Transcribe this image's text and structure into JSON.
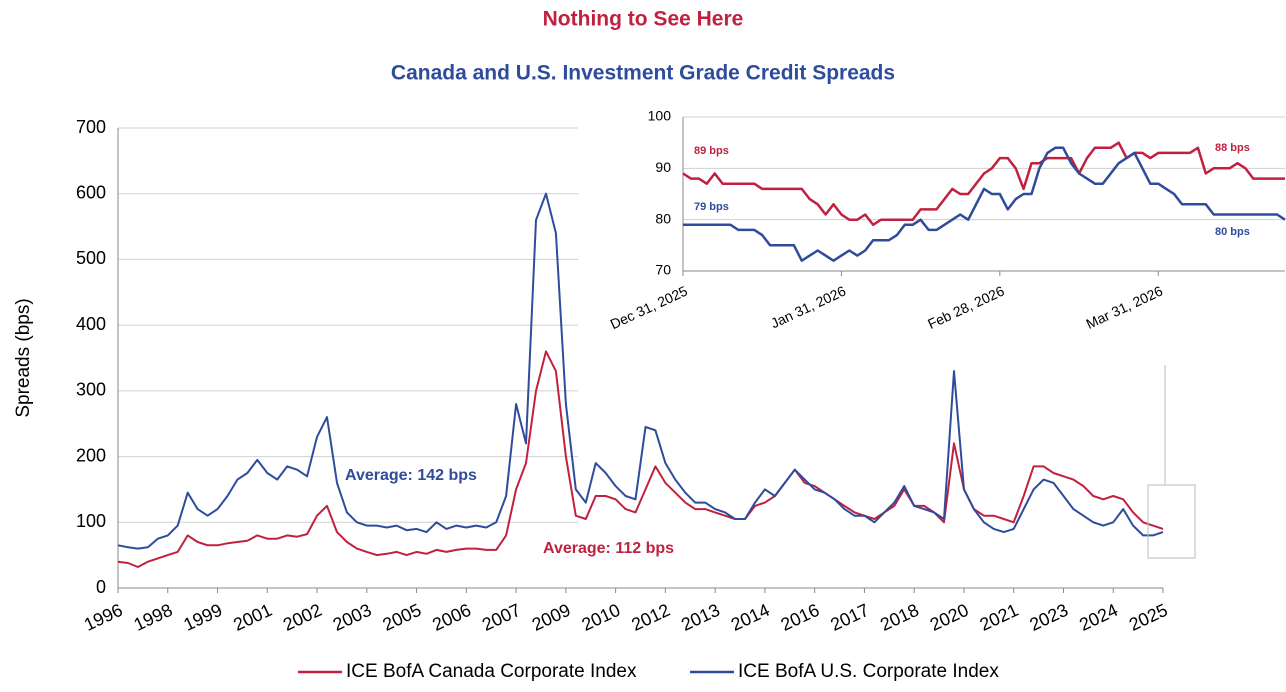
{
  "chart_data": [
    {
      "type": "line",
      "title": "Nothing to See Here",
      "subtitle": "Canada and U.S. Investment Grade Credit Spreads",
      "ylabel": "Spreads (bps)",
      "ylim": [
        0,
        700
      ],
      "yticks": [
        0,
        100,
        200,
        300,
        400,
        500,
        600,
        700
      ],
      "grid": true,
      "categories": [
        "1996",
        null,
        null,
        null,
        null,
        "1998",
        null,
        null,
        null,
        null,
        "1999",
        null,
        null,
        null,
        null,
        "2001",
        null,
        null,
        null,
        null,
        "2002",
        null,
        null,
        null,
        null,
        "2003",
        null,
        null,
        null,
        null,
        "2005",
        null,
        null,
        null,
        null,
        "2006",
        null,
        null,
        null,
        null,
        "2007",
        null,
        null,
        null,
        null,
        "2009",
        null,
        null,
        null,
        null,
        "2010",
        null,
        null,
        null,
        null,
        "2012",
        null,
        null,
        null,
        null,
        "2013",
        null,
        null,
        null,
        null,
        "2014",
        null,
        null,
        null,
        null,
        "2016",
        null,
        null,
        null,
        null,
        "2017",
        null,
        null,
        null,
        null,
        "2018",
        null,
        null,
        null,
        null,
        "2020",
        null,
        null,
        null,
        null,
        "2021",
        null,
        null,
        null,
        null,
        "2023",
        null,
        null,
        null,
        null,
        "2024",
        null,
        null,
        null,
        null,
        "2025"
      ],
      "series": [
        {
          "name": "ICE BofA Canada Corporate Index",
          "color": "#c0213f",
          "values": [
            40,
            38,
            32,
            40,
            45,
            50,
            55,
            80,
            70,
            65,
            65,
            68,
            70,
            72,
            80,
            75,
            75,
            80,
            78,
            82,
            110,
            125,
            85,
            70,
            60,
            55,
            50,
            52,
            55,
            50,
            55,
            52,
            58,
            55,
            58,
            60,
            60,
            58,
            58,
            80,
            150,
            190,
            300,
            360,
            330,
            200,
            110,
            105,
            140,
            140,
            135,
            120,
            115,
            150,
            185,
            160,
            145,
            130,
            120,
            120,
            115,
            110,
            105,
            105,
            125,
            130,
            140,
            160,
            180,
            160,
            155,
            145,
            135,
            125,
            115,
            110,
            105,
            115,
            125,
            150,
            125,
            125,
            115,
            100,
            220,
            150,
            120,
            110,
            110,
            105,
            100,
            140,
            185,
            185,
            175,
            170,
            165,
            155,
            140,
            135,
            140,
            135,
            115,
            100,
            95,
            90
          ]
        },
        {
          "name": "ICE BofA U.S. Corporate Index",
          "color": "#2f4b9c",
          "values": [
            65,
            62,
            60,
            62,
            75,
            80,
            95,
            145,
            120,
            110,
            120,
            140,
            165,
            175,
            195,
            175,
            165,
            185,
            180,
            170,
            230,
            260,
            160,
            115,
            100,
            95,
            95,
            92,
            95,
            88,
            90,
            85,
            100,
            90,
            95,
            92,
            95,
            92,
            100,
            140,
            280,
            220,
            560,
            600,
            540,
            280,
            150,
            130,
            190,
            175,
            155,
            140,
            135,
            245,
            240,
            190,
            165,
            145,
            130,
            130,
            120,
            115,
            105,
            105,
            130,
            150,
            140,
            160,
            180,
            165,
            150,
            145,
            135,
            120,
            110,
            110,
            100,
            115,
            130,
            155,
            125,
            120,
            115,
            105,
            330,
            150,
            120,
            100,
            90,
            85,
            90,
            120,
            150,
            165,
            160,
            140,
            120,
            110,
            100,
            95,
            100,
            120,
            95,
            80,
            80,
            85
          ]
        }
      ],
      "annotations": [
        {
          "text": "Average: 142 bps",
          "color": "#2f4b9c"
        },
        {
          "text": "Average: 112 bps",
          "color": "#c0213f"
        }
      ]
    },
    {
      "type": "line",
      "ylim": [
        70,
        100
      ],
      "yticks": [
        70,
        80,
        90,
        100
      ],
      "grid": true,
      "categories": [
        "Dec 31, 2025",
        null,
        null,
        null,
        null,
        null,
        null,
        null,
        null,
        null,
        null,
        null,
        null,
        null,
        null,
        null,
        null,
        null,
        null,
        null,
        "Jan 31, 2026",
        null,
        null,
        null,
        null,
        null,
        null,
        null,
        null,
        null,
        null,
        null,
        null,
        null,
        null,
        null,
        null,
        null,
        null,
        null,
        "Feb 28, 2026",
        null,
        null,
        null,
        null,
        null,
        null,
        null,
        null,
        null,
        null,
        null,
        null,
        null,
        null,
        null,
        null,
        null,
        null,
        null,
        "Mar 31, 2026",
        null,
        null,
        null,
        null,
        null,
        null,
        null,
        null,
        null,
        null,
        null,
        null,
        null,
        null,
        null,
        null
      ],
      "series": [
        {
          "name": "ICE BofA Canada Corporate Index",
          "color": "#c0213f",
          "values": [
            89,
            88,
            88,
            87,
            89,
            87,
            87,
            87,
            87,
            87,
            86,
            86,
            86,
            86,
            86,
            86,
            84,
            83,
            81,
            83,
            81,
            80,
            80,
            81,
            79,
            80,
            80,
            80,
            80,
            80,
            82,
            82,
            82,
            84,
            86,
            85,
            85,
            87,
            89,
            90,
            92,
            92,
            90,
            86,
            91,
            91,
            92,
            92,
            92,
            92,
            89,
            92,
            94,
            94,
            94,
            95,
            92,
            93,
            93,
            92,
            93,
            93,
            93,
            93,
            93,
            94,
            89,
            90,
            90,
            90,
            91,
            90,
            88,
            88,
            88,
            88,
            88
          ]
        },
        {
          "name": "ICE BofA U.S. Corporate Index",
          "color": "#2f4b9c",
          "values": [
            79,
            79,
            79,
            79,
            79,
            79,
            79,
            78,
            78,
            78,
            77,
            75,
            75,
            75,
            75,
            72,
            73,
            74,
            73,
            72,
            73,
            74,
            73,
            74,
            76,
            76,
            76,
            77,
            79,
            79,
            80,
            78,
            78,
            79,
            80,
            81,
            80,
            83,
            86,
            85,
            85,
            82,
            84,
            85,
            85,
            90,
            93,
            94,
            94,
            91,
            89,
            88,
            87,
            87,
            89,
            91,
            92,
            93,
            90,
            87,
            87,
            86,
            85,
            83,
            83,
            83,
            83,
            81,
            81,
            81,
            81,
            81,
            81,
            81,
            81,
            81,
            80
          ]
        }
      ],
      "annotations": [
        {
          "text": "89 bps",
          "color": "#c0213f"
        },
        {
          "text": "79 bps",
          "color": "#2f4b9c"
        },
        {
          "text": "88 bps",
          "color": "#c0213f"
        },
        {
          "text": "80 bps",
          "color": "#2f4b9c"
        }
      ]
    }
  ]
}
